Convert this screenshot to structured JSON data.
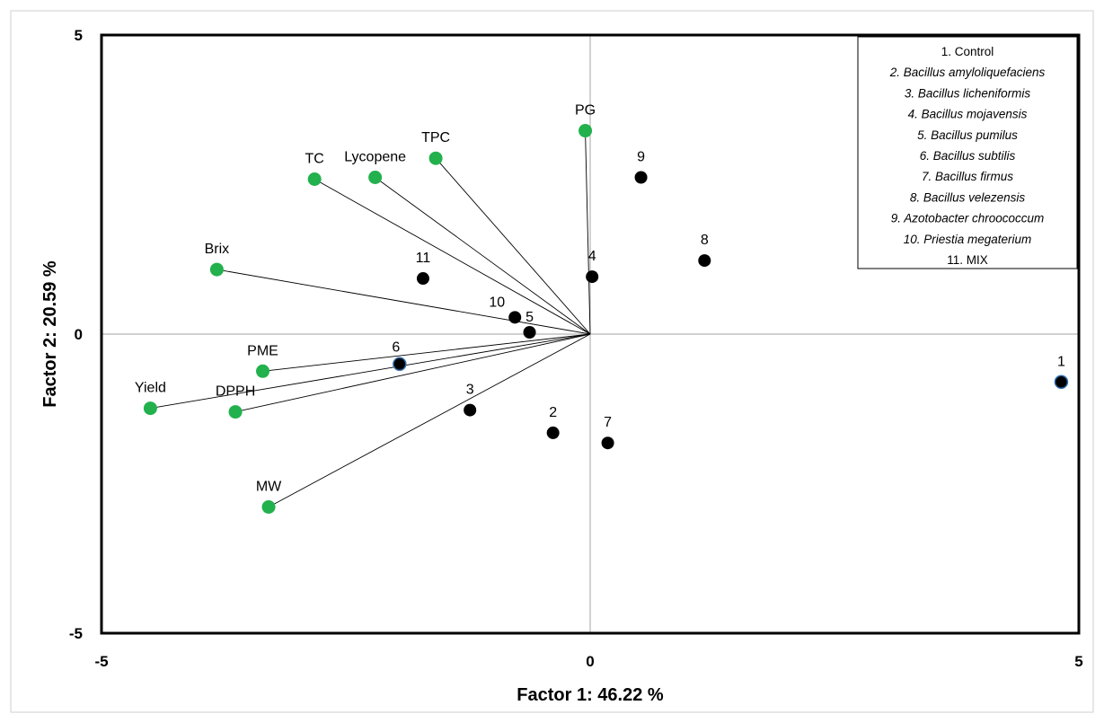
{
  "chart_data": {
    "type": "scatter",
    "title": "",
    "xlabel": "Factor 1: 46.22 %",
    "ylabel": "Factor 2: 20.59 %",
    "xlim": [
      -5,
      5
    ],
    "ylim": [
      -5,
      5
    ],
    "x_ticks": [
      "-5",
      "0",
      "5"
    ],
    "y_ticks": [
      "5",
      "0",
      "-5"
    ],
    "grid": false,
    "legend_position": "top-right",
    "colors": {
      "variable": "#22b14c",
      "treatment": "#000000",
      "control_edge": "#2f6fb0"
    },
    "variables": [
      {
        "label": "PG",
        "x": -0.05,
        "y": 3.4
      },
      {
        "label": "TPC",
        "x": -1.58,
        "y": 2.94
      },
      {
        "label": "Lycopene",
        "x": -2.2,
        "y": 2.62
      },
      {
        "label": "TC",
        "x": -2.82,
        "y": 2.59
      },
      {
        "label": "Brix",
        "x": -3.82,
        "y": 1.08
      },
      {
        "label": "PME",
        "x": -3.35,
        "y": -0.62
      },
      {
        "label": "Yield",
        "x": -4.5,
        "y": -1.24
      },
      {
        "label": "DPPH",
        "x": -3.63,
        "y": -1.3
      },
      {
        "label": "MW",
        "x": -3.29,
        "y": -2.89
      }
    ],
    "treatments": [
      {
        "label": "1",
        "x": 4.82,
        "y": -0.8
      },
      {
        "label": "2",
        "x": -0.38,
        "y": -1.65
      },
      {
        "label": "3",
        "x": -1.23,
        "y": -1.27
      },
      {
        "label": "4",
        "x": 0.02,
        "y": 0.96
      },
      {
        "label": "5",
        "x": -0.62,
        "y": 0.03
      },
      {
        "label": "6",
        "x": -1.95,
        "y": -0.5
      },
      {
        "label": "7",
        "x": 0.18,
        "y": -1.82
      },
      {
        "label": "8",
        "x": 1.17,
        "y": 1.23
      },
      {
        "label": "9",
        "x": 0.52,
        "y": 2.62
      },
      {
        "label": "10",
        "x": -0.77,
        "y": 0.28
      },
      {
        "label": "11",
        "x": -1.71,
        "y": 0.93
      }
    ],
    "legend": [
      {
        "text": "1. Control",
        "italic": false
      },
      {
        "text": "2. Bacillus amyloliquefaciens",
        "italic": true
      },
      {
        "text": "3. Bacillus licheniformis",
        "italic": true
      },
      {
        "text": "4. Bacillus mojavensis",
        "italic": true
      },
      {
        "text": "5. Bacillus pumilus",
        "italic": true
      },
      {
        "text": "6. Bacillus subtilis",
        "italic": true
      },
      {
        "text": "7. Bacillus firmus",
        "italic": true
      },
      {
        "text": "8. Bacillus velezensis",
        "italic": true
      },
      {
        "text": "9. Azotobacter chroococcum",
        "italic": true
      },
      {
        "text": "10. Priestia megaterium",
        "italic": true
      },
      {
        "text": "11.  MIX",
        "italic": false
      }
    ]
  }
}
